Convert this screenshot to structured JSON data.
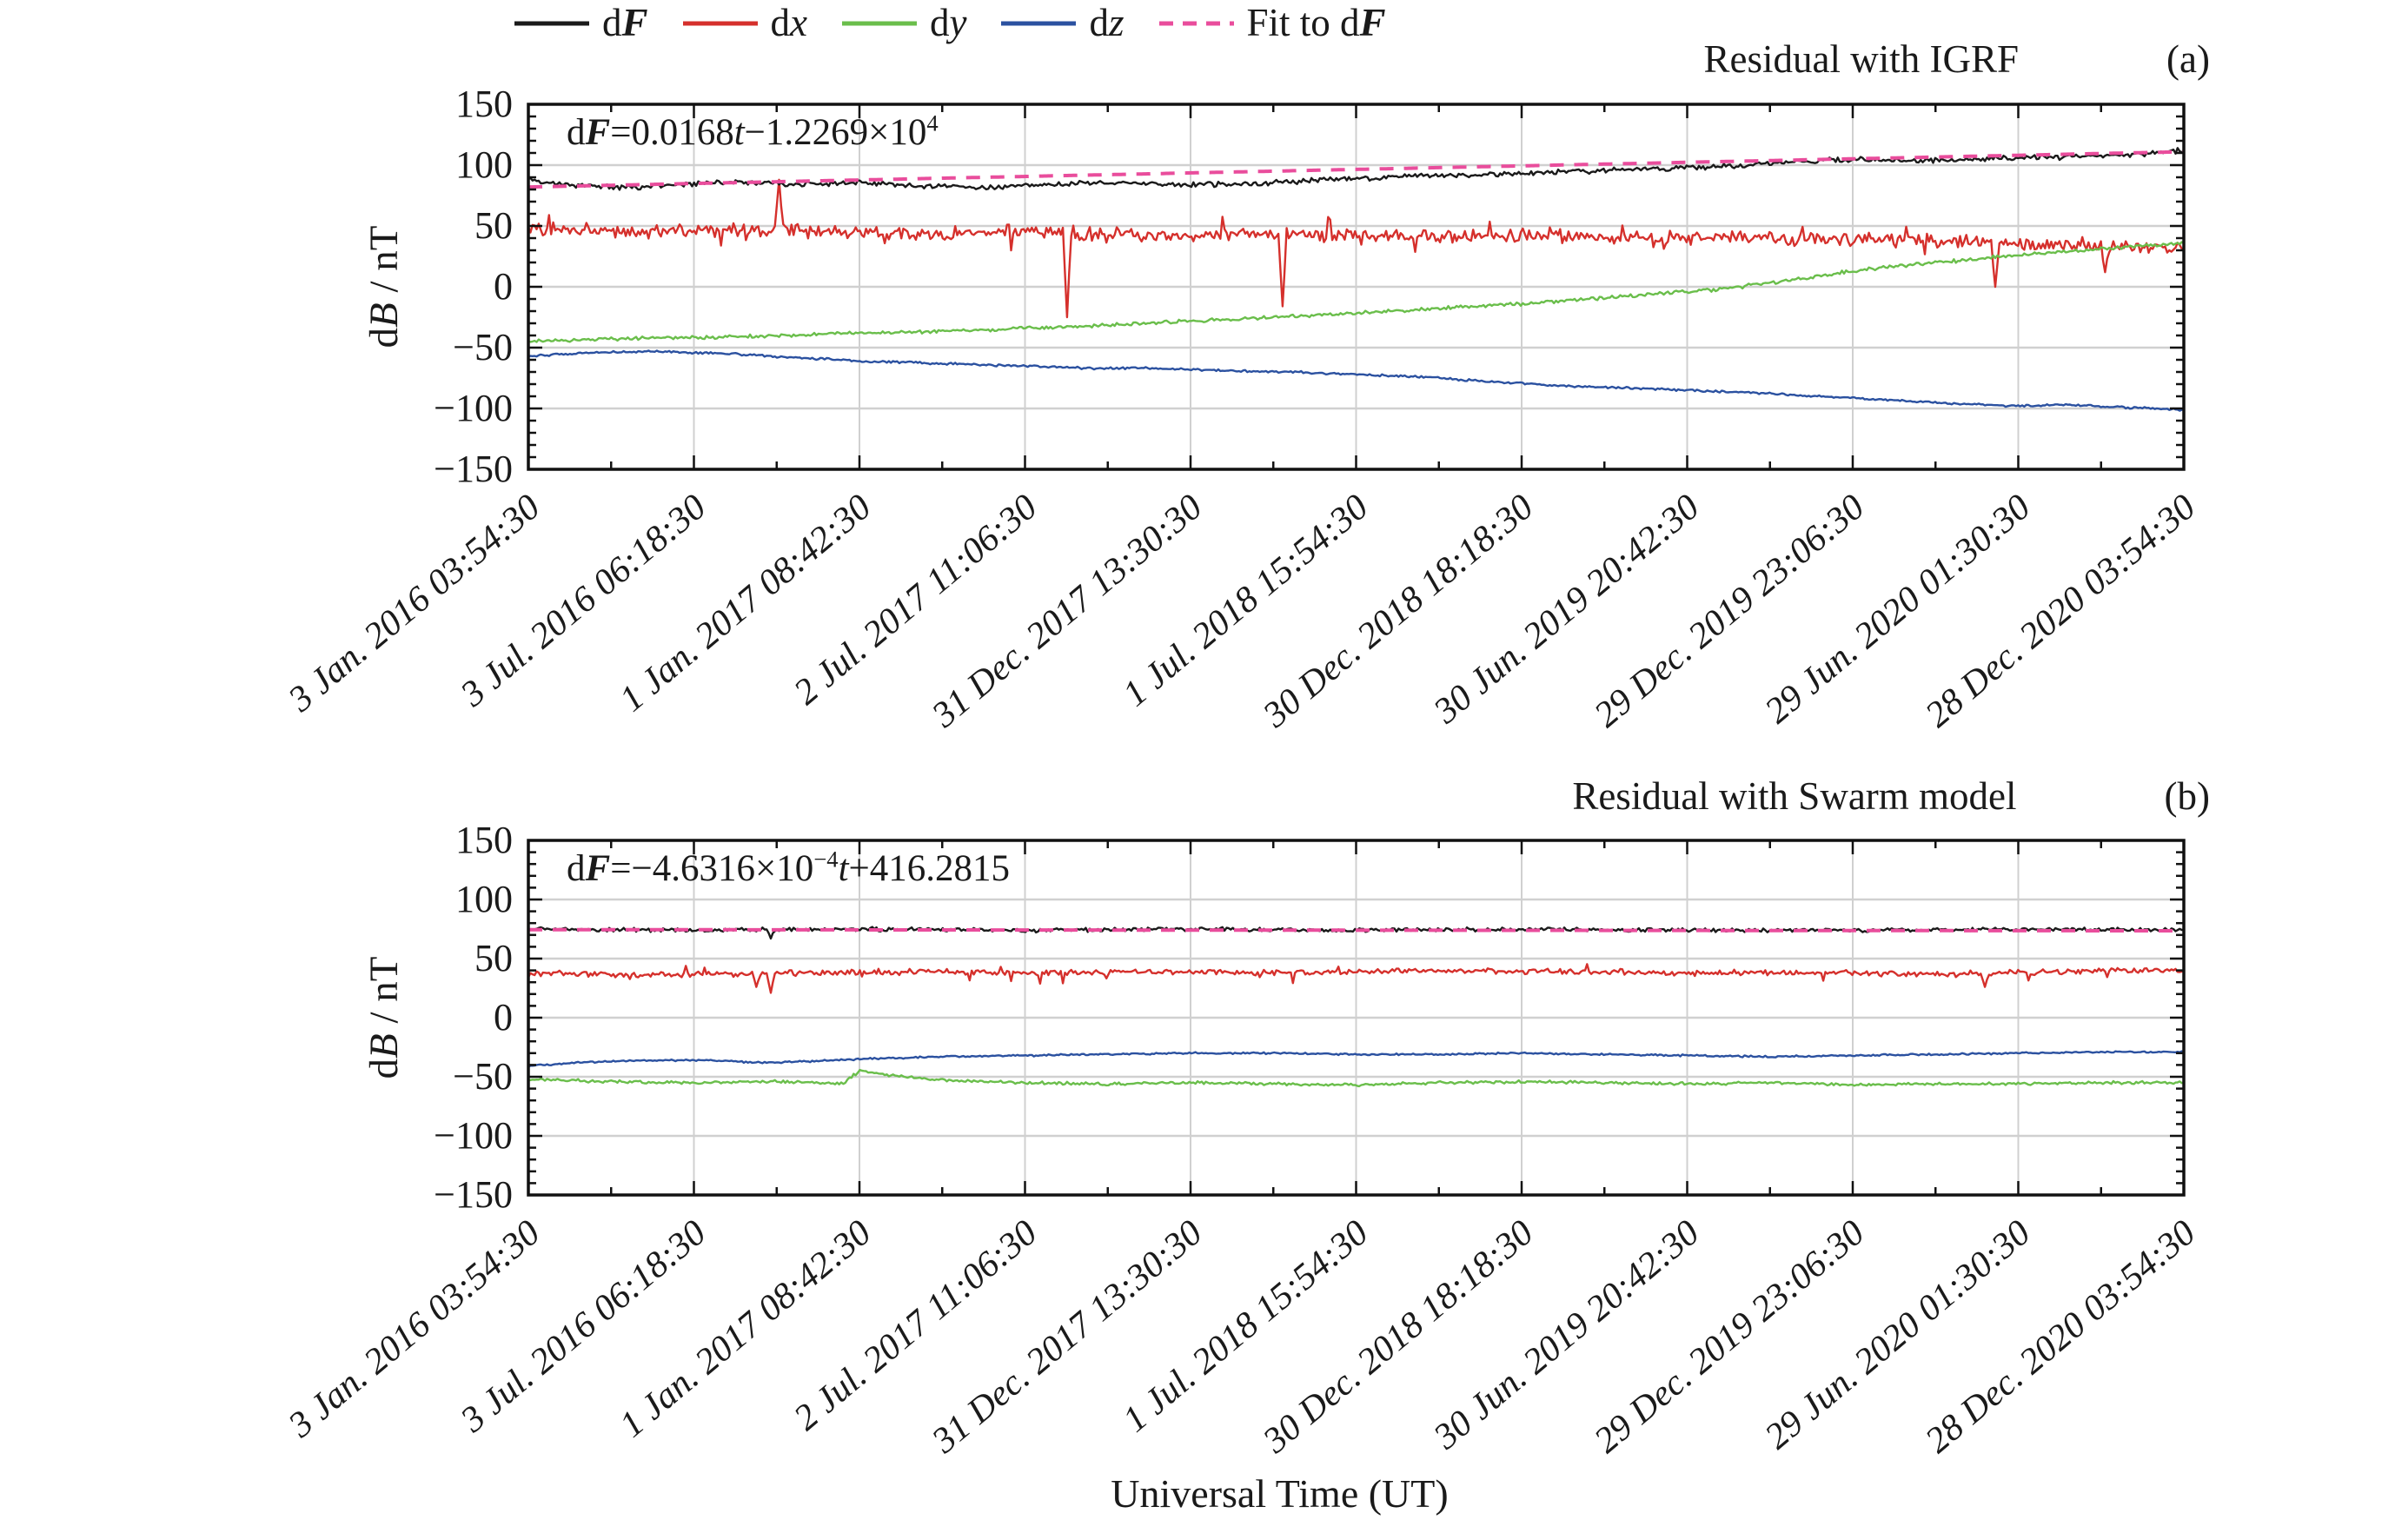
{
  "figure": {
    "xlabel": "Universal Time (UT)",
    "ylabel_parts": [
      {
        "t": "d"
      },
      {
        "t": "B",
        "s": "i"
      },
      {
        "t": " / nT"
      }
    ],
    "y_tick_labels": [
      "150",
      "100",
      "50",
      "0",
      "−50",
      "−100",
      "−150"
    ],
    "x_tick_labels": [
      "3 Jan. 2016 03:54:30",
      "3 Jul. 2016 06:18:30",
      "1 Jan. 2017 08:42:30",
      "2 Jul. 2017 11:06:30",
      "31 Dec. 2017 13:30:30",
      "1 Jul. 2018 15:54:30",
      "30 Dec. 2018 18:18:30",
      "30 Jun. 2019 20:42:30",
      "29 Dec. 2019 23:06:30",
      "29 Jun. 2020 01:30:30",
      "28 Dec. 2020 03:54:30"
    ],
    "legend": [
      {
        "id": "dF",
        "color": "#1a1a1a",
        "dash": false,
        "label_parts": [
          {
            "t": "d"
          },
          {
            "t": "F",
            "s": "bi"
          }
        ]
      },
      {
        "id": "dx",
        "color": "#d5302c",
        "dash": false,
        "label_parts": [
          {
            "t": "d"
          },
          {
            "t": "x",
            "s": "i"
          }
        ]
      },
      {
        "id": "dy",
        "color": "#6abe4b",
        "dash": false,
        "label_parts": [
          {
            "t": "d"
          },
          {
            "t": "y",
            "s": "i"
          }
        ]
      },
      {
        "id": "dz",
        "color": "#2b51a0",
        "dash": false,
        "label_parts": [
          {
            "t": "d"
          },
          {
            "t": "z",
            "s": "i"
          }
        ]
      },
      {
        "id": "fit",
        "color": "#e94d9c",
        "dash": true,
        "label_parts": [
          {
            "t": "Fit to d"
          },
          {
            "t": "F",
            "s": "bi"
          }
        ]
      }
    ],
    "grid_color": "#d0d0d0",
    "axis_color": "#111111"
  },
  "chart_data": [
    {
      "type": "line",
      "panel": "a",
      "title": "Residual with IGRF",
      "tag": "(a)",
      "equation_text": "dF=0.0168t−1.2269×10^4",
      "equation_parts": [
        {
          "t": "d"
        },
        {
          "t": "F",
          "s": "bi"
        },
        {
          "t": "="
        },
        {
          "t": "0.0168"
        },
        {
          "t": "t",
          "s": "i"
        },
        {
          "t": "−1.2269×10"
        },
        {
          "t": "4",
          "s": "sup"
        }
      ],
      "ylim": [
        -150,
        150
      ],
      "ytick_values": [
        150,
        100,
        50,
        0,
        -50,
        -100,
        -150
      ],
      "grid_y": [
        100,
        50,
        0,
        -50,
        -100
      ],
      "x_range_labels": [
        "3 Jan. 2016 03:54:30",
        "28 Dec. 2020 03:54:30"
      ],
      "series": [
        {
          "name": "dz",
          "color": "#2b51a0",
          "noise": 1.1,
          "seed": 4,
          "keypoints": [
            [
              0,
              -57
            ],
            [
              0.04,
              -54
            ],
            [
              0.08,
              -53
            ],
            [
              0.12,
              -55
            ],
            [
              0.16,
              -58
            ],
            [
              0.2,
              -61
            ],
            [
              0.25,
              -63
            ],
            [
              0.3,
              -65
            ],
            [
              0.34,
              -67
            ],
            [
              0.38,
              -67
            ],
            [
              0.42,
              -69
            ],
            [
              0.46,
              -70
            ],
            [
              0.5,
              -72
            ],
            [
              0.54,
              -74
            ],
            [
              0.58,
              -78
            ],
            [
              0.62,
              -81
            ],
            [
              0.66,
              -83
            ],
            [
              0.7,
              -85
            ],
            [
              0.74,
              -87
            ],
            [
              0.78,
              -90
            ],
            [
              0.82,
              -93
            ],
            [
              0.86,
              -96
            ],
            [
              0.9,
              -98
            ],
            [
              0.93,
              -97
            ],
            [
              0.96,
              -99
            ],
            [
              1,
              -101
            ]
          ]
        },
        {
          "name": "dx",
          "color": "#d5302c",
          "noise": 6.5,
          "seed": 2,
          "noise2": {
            "p": 0.06,
            "amp": 15
          },
          "spikes": [
            [
              0.152,
              88
            ],
            [
              0.325,
              -25
            ],
            [
              0.455,
              -16
            ],
            [
              0.886,
              0
            ],
            [
              0.953,
              12
            ]
          ],
          "keypoints": [
            [
              0,
              48
            ],
            [
              0.06,
              45
            ],
            [
              0.12,
              47
            ],
            [
              0.18,
              45
            ],
            [
              0.24,
              44
            ],
            [
              0.3,
              45
            ],
            [
              0.36,
              43
            ],
            [
              0.42,
              44
            ],
            [
              0.48,
              42
            ],
            [
              0.54,
              41
            ],
            [
              0.6,
              42
            ],
            [
              0.66,
              40
            ],
            [
              0.72,
              41
            ],
            [
              0.78,
              39
            ],
            [
              0.84,
              38
            ],
            [
              0.9,
              35
            ],
            [
              0.95,
              33
            ],
            [
              1,
              33
            ]
          ]
        },
        {
          "name": "dy",
          "color": "#6abe4b",
          "noise": 1.7,
          "seed": 3,
          "keypoints": [
            [
              0,
              -45
            ],
            [
              0.04,
              -43
            ],
            [
              0.08,
              -42
            ],
            [
              0.12,
              -41
            ],
            [
              0.16,
              -40
            ],
            [
              0.2,
              -38
            ],
            [
              0.24,
              -37
            ],
            [
              0.28,
              -35
            ],
            [
              0.32,
              -33
            ],
            [
              0.36,
              -31
            ],
            [
              0.4,
              -28
            ],
            [
              0.44,
              -26
            ],
            [
              0.48,
              -23
            ],
            [
              0.52,
              -20
            ],
            [
              0.56,
              -17
            ],
            [
              0.6,
              -14
            ],
            [
              0.64,
              -10
            ],
            [
              0.68,
              -6
            ],
            [
              0.72,
              -2
            ],
            [
              0.76,
              5
            ],
            [
              0.8,
              13
            ],
            [
              0.82,
              16
            ],
            [
              0.86,
              21
            ],
            [
              0.9,
              26
            ],
            [
              0.94,
              30
            ],
            [
              0.97,
              33
            ],
            [
              1,
              36
            ]
          ]
        },
        {
          "name": "dF",
          "color": "#1a1a1a",
          "noise": 2.6,
          "seed": 1,
          "keypoints": [
            [
              0,
              88
            ],
            [
              0.03,
              83
            ],
            [
              0.06,
              81
            ],
            [
              0.1,
              85
            ],
            [
              0.13,
              86
            ],
            [
              0.16,
              84
            ],
            [
              0.2,
              86
            ],
            [
              0.24,
              83
            ],
            [
              0.28,
              82
            ],
            [
              0.32,
              84
            ],
            [
              0.36,
              86
            ],
            [
              0.4,
              84
            ],
            [
              0.44,
              85
            ],
            [
              0.48,
              88
            ],
            [
              0.52,
              90
            ],
            [
              0.56,
              92
            ],
            [
              0.6,
              93
            ],
            [
              0.64,
              95
            ],
            [
              0.68,
              97
            ],
            [
              0.72,
              99
            ],
            [
              0.76,
              102
            ],
            [
              0.8,
              105
            ],
            [
              0.83,
              103
            ],
            [
              0.86,
              104
            ],
            [
              0.9,
              106
            ],
            [
              0.94,
              107
            ],
            [
              0.97,
              109
            ],
            [
              1,
              112
            ]
          ]
        },
        {
          "name": "fit-dF",
          "color": "#e94d9c",
          "dash": true,
          "noise": 0,
          "seed": 9,
          "keypoints": [
            [
              0,
              82
            ],
            [
              1,
              111
            ]
          ]
        }
      ]
    },
    {
      "type": "line",
      "panel": "b",
      "title": "Residual with Swarm model",
      "tag": "(b)",
      "equation_text": "dF=−4.6316×10^−4 t+416.2815",
      "equation_parts": [
        {
          "t": "d"
        },
        {
          "t": "F",
          "s": "bi"
        },
        {
          "t": "="
        },
        {
          "t": "−4.6316×10"
        },
        {
          "t": "−4",
          "s": "sup"
        },
        {
          "t": "t",
          "s": "i"
        },
        {
          "t": "+416.2815"
        }
      ],
      "ylim": [
        -150,
        150
      ],
      "ytick_values": [
        150,
        100,
        50,
        0,
        -50,
        -100,
        -150
      ],
      "grid_y": [
        100,
        50,
        0,
        -50,
        -100
      ],
      "x_range_labels": [
        "3 Jan. 2016 03:54:30",
        "28 Dec. 2020 03:54:30"
      ],
      "series": [
        {
          "name": "dx",
          "color": "#d5302c",
          "noise": 2.8,
          "seed": 6,
          "noise2": {
            "p": 0.05,
            "amp": 9
          },
          "spikes": [
            [
              0.138,
              26
            ],
            [
              0.147,
              21
            ],
            [
              0.88,
              26
            ]
          ],
          "keypoints": [
            [
              0,
              38
            ],
            [
              0.08,
              36
            ],
            [
              0.16,
              38
            ],
            [
              0.24,
              39
            ],
            [
              0.3,
              38
            ],
            [
              0.38,
              39
            ],
            [
              0.46,
              38
            ],
            [
              0.54,
              40
            ],
            [
              0.62,
              39
            ],
            [
              0.7,
              38
            ],
            [
              0.78,
              38
            ],
            [
              0.86,
              37
            ],
            [
              0.92,
              39
            ],
            [
              1,
              40
            ]
          ]
        },
        {
          "name": "dz",
          "color": "#2b51a0",
          "noise": 0.9,
          "seed": 7,
          "keypoints": [
            [
              0,
              -41
            ],
            [
              0.03,
              -38
            ],
            [
              0.07,
              -36
            ],
            [
              0.11,
              -36
            ],
            [
              0.14,
              -38
            ],
            [
              0.17,
              -37
            ],
            [
              0.2,
              -35
            ],
            [
              0.25,
              -33
            ],
            [
              0.3,
              -32
            ],
            [
              0.35,
              -31
            ],
            [
              0.4,
              -30
            ],
            [
              0.45,
              -30
            ],
            [
              0.5,
              -31
            ],
            [
              0.55,
              -31
            ],
            [
              0.6,
              -30
            ],
            [
              0.65,
              -31
            ],
            [
              0.7,
              -32
            ],
            [
              0.75,
              -33
            ],
            [
              0.8,
              -32
            ],
            [
              0.85,
              -31
            ],
            [
              0.9,
              -30
            ],
            [
              0.95,
              -29
            ],
            [
              1,
              -29
            ]
          ]
        },
        {
          "name": "dy",
          "color": "#6abe4b",
          "noise": 1.5,
          "seed": 8,
          "keypoints": [
            [
              0,
              -52
            ],
            [
              0.05,
              -54
            ],
            [
              0.1,
              -55
            ],
            [
              0.15,
              -54
            ],
            [
              0.19,
              -56
            ],
            [
              0.2,
              -45
            ],
            [
              0.22,
              -49
            ],
            [
              0.25,
              -53
            ],
            [
              0.3,
              -55
            ],
            [
              0.35,
              -56
            ],
            [
              0.4,
              -55
            ],
            [
              0.45,
              -56
            ],
            [
              0.5,
              -57
            ],
            [
              0.55,
              -55
            ],
            [
              0.6,
              -54
            ],
            [
              0.65,
              -55
            ],
            [
              0.7,
              -56
            ],
            [
              0.75,
              -55
            ],
            [
              0.8,
              -57
            ],
            [
              0.85,
              -56
            ],
            [
              0.9,
              -56
            ],
            [
              0.95,
              -55
            ],
            [
              1,
              -55
            ]
          ]
        },
        {
          "name": "dF",
          "color": "#1a1a1a",
          "noise": 2.0,
          "seed": 5,
          "spikes": [
            [
              0.146,
              67
            ]
          ],
          "keypoints": [
            [
              0,
              75
            ],
            [
              0.1,
              74
            ],
            [
              0.2,
              75
            ],
            [
              0.3,
              74
            ],
            [
              0.4,
              75
            ],
            [
              0.5,
              74
            ],
            [
              0.6,
              75
            ],
            [
              0.7,
              74
            ],
            [
              0.8,
              74
            ],
            [
              0.9,
              75
            ],
            [
              1,
              74
            ]
          ]
        },
        {
          "name": "fit-dF",
          "color": "#e94d9c",
          "dash": true,
          "noise": 0,
          "seed": 10,
          "keypoints": [
            [
              0,
              74.5
            ],
            [
              1,
              73.5
            ]
          ]
        }
      ]
    }
  ]
}
